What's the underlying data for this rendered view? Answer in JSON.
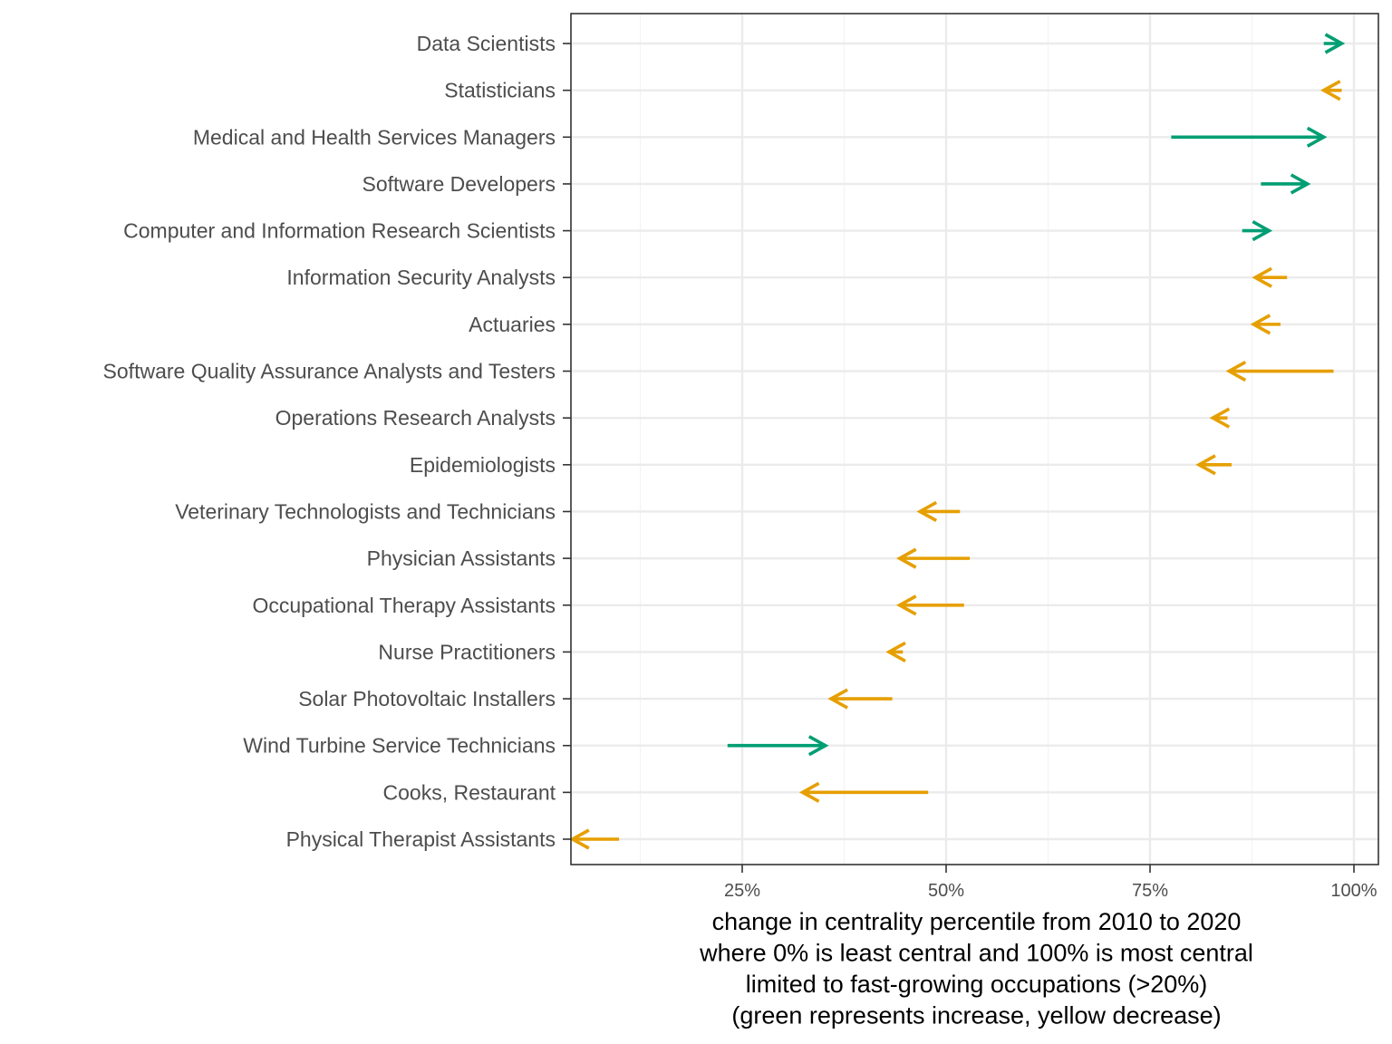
{
  "chart_data": {
    "type": "arrow",
    "title": "",
    "xlabel_lines": [
      "change in centrality percentile from 2010 to 2020",
      "where 0% is least central and 100% is most central",
      "limited to fast-growing occupations (>20%)",
      "(green represents increase, yellow decrease)"
    ],
    "ylabel": "",
    "xlim": [
      0.04,
      1.03
    ],
    "x_ticks": [
      0.25,
      0.5,
      0.75,
      1.0
    ],
    "x_tick_labels": [
      "25%",
      "50%",
      "75%",
      "100%"
    ],
    "grid": true,
    "colors": {
      "increase": "#009E73",
      "decrease": "#E69F00"
    },
    "rows": [
      {
        "label": "Data Scientists",
        "from": 0.963,
        "to": 0.985,
        "direction": "increase"
      },
      {
        "label": "Statisticians",
        "from": 0.985,
        "to": 0.963,
        "direction": "decrease"
      },
      {
        "label": "Medical and Health Services Managers",
        "from": 0.776,
        "to": 0.963,
        "direction": "increase"
      },
      {
        "label": "Software Developers",
        "from": 0.886,
        "to": 0.943,
        "direction": "increase"
      },
      {
        "label": "Computer and Information Research Scientists",
        "from": 0.863,
        "to": 0.896,
        "direction": "increase"
      },
      {
        "label": "Information Security Analysts",
        "from": 0.918,
        "to": 0.879,
        "direction": "decrease"
      },
      {
        "label": "Actuaries",
        "from": 0.91,
        "to": 0.877,
        "direction": "decrease"
      },
      {
        "label": "Software Quality Assurance Analysts and Testers",
        "from": 0.975,
        "to": 0.847,
        "direction": "decrease"
      },
      {
        "label": "Operations Research Analysts",
        "from": 0.845,
        "to": 0.827,
        "direction": "decrease"
      },
      {
        "label": "Epidemiologists",
        "from": 0.85,
        "to": 0.81,
        "direction": "decrease"
      },
      {
        "label": "Veterinary Technologists and Technicians",
        "from": 0.517,
        "to": 0.468,
        "direction": "decrease"
      },
      {
        "label": "Physician Assistants",
        "from": 0.529,
        "to": 0.443,
        "direction": "decrease"
      },
      {
        "label": "Occupational Therapy Assistants",
        "from": 0.522,
        "to": 0.443,
        "direction": "decrease"
      },
      {
        "label": "Nurse Practitioners",
        "from": 0.447,
        "to": 0.43,
        "direction": "decrease"
      },
      {
        "label": "Solar Photovoltaic Installers",
        "from": 0.434,
        "to": 0.359,
        "direction": "decrease"
      },
      {
        "label": "Wind Turbine Service Technicians",
        "from": 0.232,
        "to": 0.352,
        "direction": "increase"
      },
      {
        "label": "Cooks, Restaurant",
        "from": 0.478,
        "to": 0.324,
        "direction": "decrease"
      },
      {
        "label": "Physical Therapist Assistants",
        "from": 0.099,
        "to": 0.042,
        "direction": "decrease"
      }
    ]
  }
}
